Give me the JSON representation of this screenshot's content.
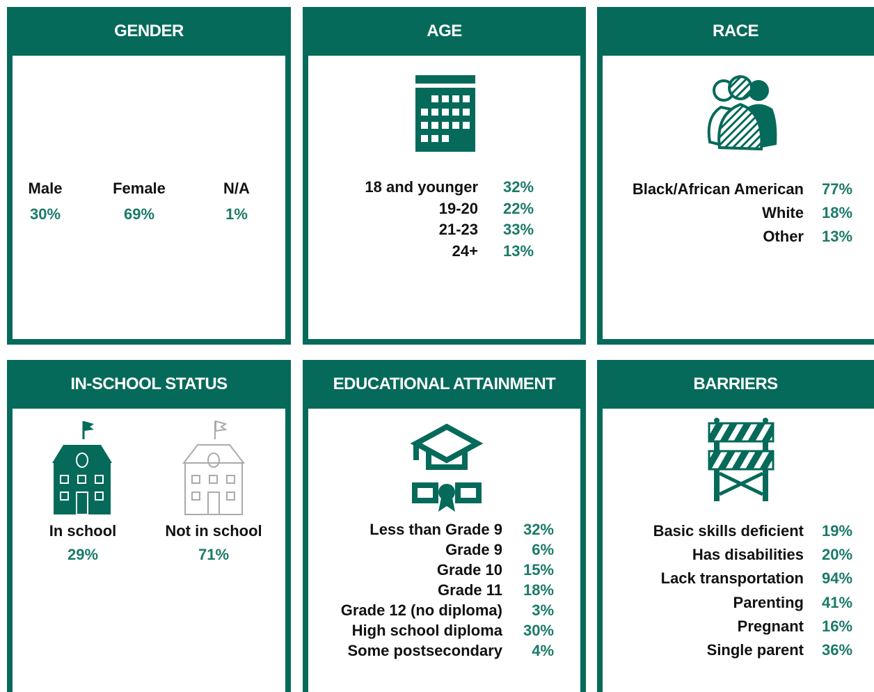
{
  "panels": [
    {
      "title": "GENDER",
      "items": [
        {
          "label": "Male",
          "value": "30%"
        },
        {
          "label": "Female",
          "value": "69%"
        },
        {
          "label": "N/A",
          "value": "1%"
        }
      ]
    },
    {
      "title": "AGE",
      "items": [
        {
          "label": "18 and younger",
          "value": "32%"
        },
        {
          "label": "19-20",
          "value": "22%"
        },
        {
          "label": "21-23",
          "value": "33%"
        },
        {
          "label": "24+",
          "value": "13%"
        }
      ]
    },
    {
      "title": "RACE",
      "items": [
        {
          "label": "Black/African American",
          "value": "77%"
        },
        {
          "label": "White",
          "value": "18%"
        },
        {
          "label": "Other",
          "value": "13%"
        }
      ]
    },
    {
      "title": "IN-SCHOOL STATUS",
      "items": [
        {
          "label": "In school",
          "value": "29%"
        },
        {
          "label": "Not in school",
          "value": "71%"
        }
      ]
    },
    {
      "title": "EDUCATIONAL ATTAINMENT",
      "items": [
        {
          "label": "Less than Grade 9",
          "value": "32%"
        },
        {
          "label": "Grade 9",
          "value": "6%"
        },
        {
          "label": "Grade 10",
          "value": "15%"
        },
        {
          "label": "Grade 11",
          "value": "18%"
        },
        {
          "label": "Grade 12 (no diploma)",
          "value": "3%"
        },
        {
          "label": "High school diploma",
          "value": "30%"
        },
        {
          "label": "Some postsecondary",
          "value": "4%"
        }
      ]
    },
    {
      "title": "BARRIERS",
      "items": [
        {
          "label": "Basic skills deficient",
          "value": "19%"
        },
        {
          "label": "Has disabilities",
          "value": "20%"
        },
        {
          "label": "Lack transportation",
          "value": "94%"
        },
        {
          "label": "Parenting",
          "value": "41%"
        },
        {
          "label": "Pregnant",
          "value": "16%"
        },
        {
          "label": "Single parent",
          "value": "36%"
        }
      ]
    }
  ]
}
